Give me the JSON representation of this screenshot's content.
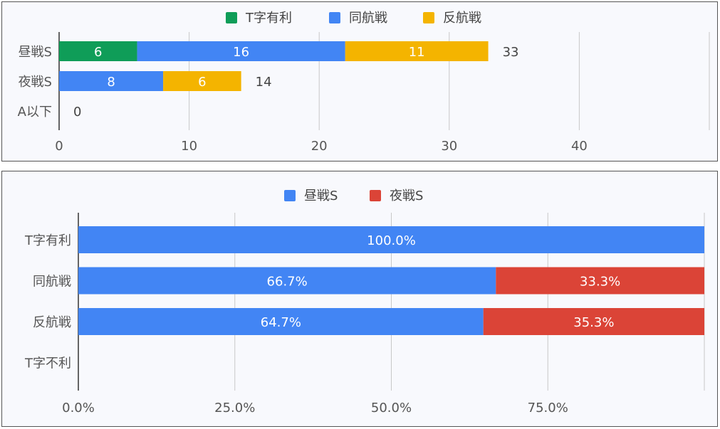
{
  "chart_data": [
    {
      "type": "bar",
      "orientation": "horizontal",
      "stacked": true,
      "categories": [
        "昼戦S",
        "夜戦S",
        "A以下"
      ],
      "series": [
        {
          "name": "T字有利",
          "color": "#0f9d58",
          "values": [
            6,
            0,
            0
          ]
        },
        {
          "name": "同航戦",
          "color": "#4285f4",
          "values": [
            16,
            8,
            0
          ]
        },
        {
          "name": "反航戦",
          "color": "#f4b400",
          "values": [
            11,
            6,
            0
          ]
        }
      ],
      "totals": [
        "33",
        "14",
        "0"
      ],
      "xlim": [
        0,
        50
      ],
      "xticks": [
        "0",
        "10",
        "20",
        "30",
        "40"
      ],
      "grid": true,
      "legend": "top"
    },
    {
      "type": "bar",
      "orientation": "horizontal",
      "stacked": true,
      "percent": true,
      "categories": [
        "T字有利",
        "同航戦",
        "反航戦",
        "T字不利"
      ],
      "series": [
        {
          "name": "昼戦S",
          "color": "#4285f4",
          "values": [
            100.0,
            66.7,
            64.7,
            0
          ]
        },
        {
          "name": "夜戦S",
          "color": "#db4437",
          "values": [
            0,
            33.3,
            35.3,
            0
          ]
        }
      ],
      "xlim": [
        0,
        100
      ],
      "xticks": [
        "0.0%",
        "25.0%",
        "50.0%",
        "75.0%"
      ],
      "grid": true,
      "legend": "top"
    }
  ]
}
